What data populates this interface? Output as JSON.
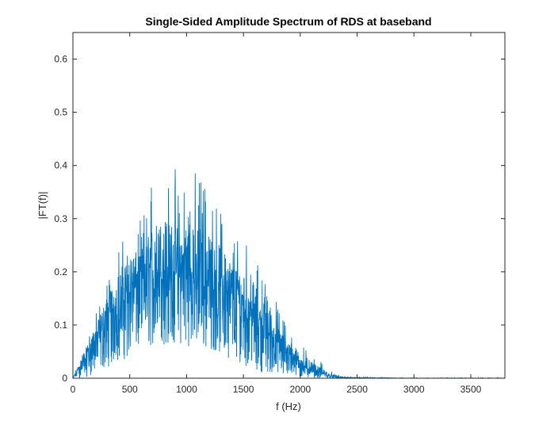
{
  "chart_data": {
    "type": "line",
    "title": "Single-Sided Amplitude Spectrum of RDS at baseband",
    "xlabel": "f (Hz)",
    "ylabel": "|FT(f)|",
    "xlim": [
      0,
      3800
    ],
    "ylim": [
      0,
      0.65
    ],
    "xticks": [
      0,
      500,
      1000,
      1500,
      2000,
      2500,
      3000,
      3500
    ],
    "yticks": [
      0,
      0.1,
      0.2,
      0.3,
      0.4,
      0.5,
      0.6
    ],
    "xtick_labels": [
      "0",
      "500",
      "1000",
      "1500",
      "2000",
      "2500",
      "3000",
      "3500"
    ],
    "ytick_labels": [
      "0",
      "0.1",
      "0.2",
      "0.3",
      "0.4",
      "0.5",
      "0.6"
    ],
    "grid": false,
    "box": true,
    "series": [
      {
        "color": "#0072BD",
        "note_style": "dense noisy spectrum",
        "x": [
          0,
          50,
          100,
          150,
          200,
          250,
          300,
          350,
          400,
          450,
          500,
          550,
          600,
          650,
          700,
          750,
          800,
          850,
          900,
          950,
          1000,
          1050,
          1100,
          1150,
          1200,
          1250,
          1300,
          1350,
          1400,
          1450,
          1500,
          1550,
          1600,
          1650,
          1700,
          1750,
          1800,
          1850,
          1900,
          1950,
          2000,
          2050,
          2100,
          2150,
          2200,
          2250,
          2300,
          2350,
          2400,
          2500,
          3000,
          3500,
          3800
        ],
        "y_upper": [
          0.0,
          0.03,
          0.06,
          0.09,
          0.12,
          0.16,
          0.2,
          0.2,
          0.26,
          0.26,
          0.3,
          0.3,
          0.3,
          0.33,
          0.4,
          0.4,
          0.41,
          0.39,
          0.4,
          0.35,
          0.39,
          0.38,
          0.41,
          0.4,
          0.36,
          0.34,
          0.33,
          0.3,
          0.29,
          0.28,
          0.26,
          0.27,
          0.24,
          0.2,
          0.19,
          0.17,
          0.14,
          0.12,
          0.1,
          0.09,
          0.07,
          0.06,
          0.045,
          0.035,
          0.03,
          0.015,
          0.01,
          0.005,
          0.003,
          0.002,
          0.001,
          0.001,
          0.001
        ],
        "y_body": [
          0.0,
          0.02,
          0.04,
          0.06,
          0.08,
          0.1,
          0.12,
          0.14,
          0.15,
          0.17,
          0.18,
          0.19,
          0.2,
          0.21,
          0.21,
          0.22,
          0.22,
          0.22,
          0.22,
          0.22,
          0.22,
          0.21,
          0.21,
          0.21,
          0.2,
          0.2,
          0.19,
          0.18,
          0.17,
          0.16,
          0.15,
          0.14,
          0.13,
          0.12,
          0.1,
          0.09,
          0.07,
          0.06,
          0.05,
          0.04,
          0.03,
          0.025,
          0.02,
          0.015,
          0.01,
          0.006,
          0.003,
          0.002,
          0.001,
          0.001,
          0.0,
          0.0,
          0.0
        ],
        "y_lower": [
          0.0,
          0.0,
          0.0,
          0.005,
          0.01,
          0.015,
          0.02,
          0.025,
          0.03,
          0.035,
          0.04,
          0.045,
          0.05,
          0.055,
          0.06,
          0.06,
          0.06,
          0.06,
          0.06,
          0.06,
          0.06,
          0.06,
          0.055,
          0.055,
          0.05,
          0.05,
          0.045,
          0.04,
          0.035,
          0.03,
          0.025,
          0.02,
          0.015,
          0.012,
          0.01,
          0.008,
          0.006,
          0.004,
          0.003,
          0.002,
          0.001,
          0.0,
          0.0,
          0.0,
          0.0,
          0.0,
          0.0,
          0.0,
          0.0,
          0.0,
          0.0,
          0.0,
          0.0
        ]
      }
    ]
  },
  "colors": {
    "line": "#0072BD",
    "axes": "#262626",
    "background": "#ffffff"
  }
}
